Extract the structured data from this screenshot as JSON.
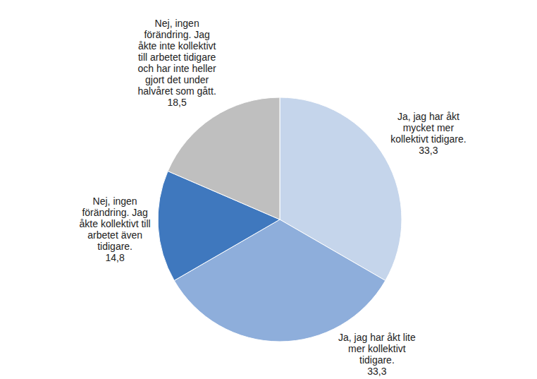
{
  "chart_data": {
    "type": "pie",
    "categories": [
      "Ja, jag har åkt\nmycket mer\nkollektivt  tidigare.",
      "Ja, jag har åkt lite\nmer kollektivt\ntidigare.",
      "Nej, ingen\nförändring. Jag\nåkte kollektivt  till\narbetet även\ntidigare.",
      "Nej, ingen\nförändring. Jag\nåkte inte kollektivt\ntill arbetet tidigare\noch har inte heller\ngjort det under\nhalvåret som gått."
    ],
    "values": [
      33.3,
      33.3,
      14.8,
      18.5
    ],
    "value_labels": [
      "33,3",
      "33,3",
      "14,8",
      "18,5"
    ],
    "colors": [
      "#c5d5eb",
      "#8eaedb",
      "#3f78be",
      "#bfbfbf"
    ],
    "data_labels": true
  }
}
